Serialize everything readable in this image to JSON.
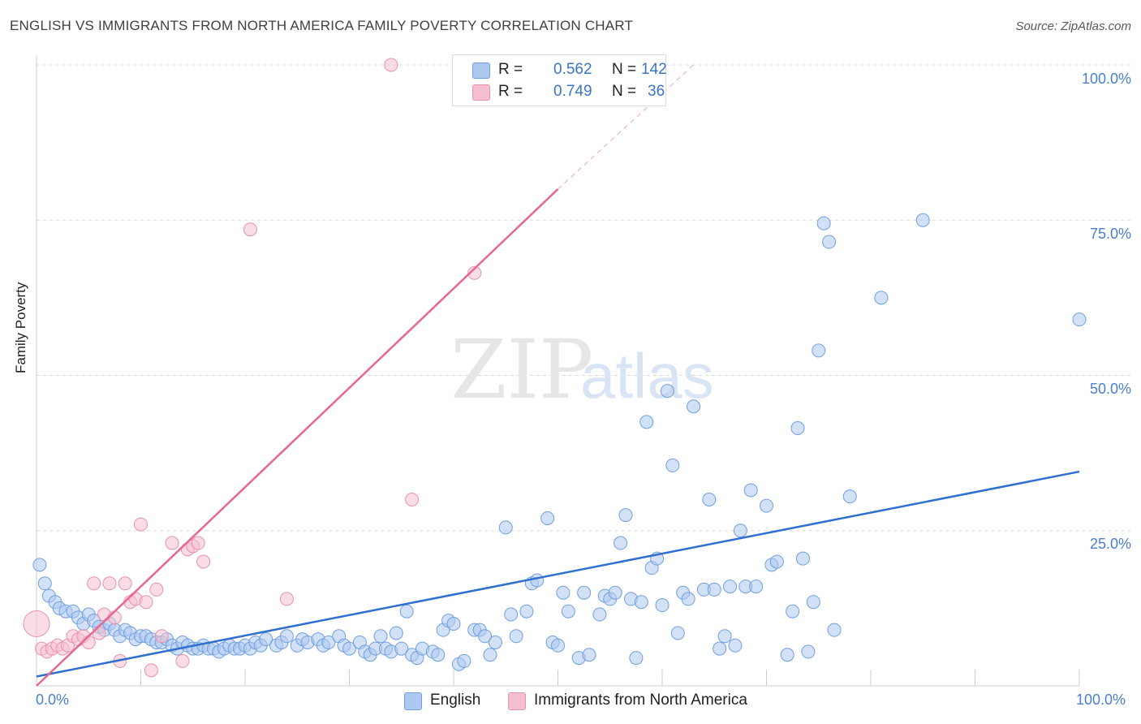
{
  "title": "ENGLISH VS IMMIGRANTS FROM NORTH AMERICA FAMILY POVERTY CORRELATION CHART",
  "source": "Source: ZipAtlas.com",
  "watermark": {
    "zip": "ZIP",
    "atlas": "atlas"
  },
  "colors": {
    "english_fill": "#aec9f0",
    "english_stroke": "#6f9fe0",
    "english_line": "#2f6fcf",
    "immig_fill": "#f6bfd0",
    "immig_stroke": "#e891ad",
    "immig_line": "#e8678f",
    "grid": "#d8d8d8",
    "tick_text": "#4a7fd0"
  },
  "legend": {
    "rows": [
      {
        "r_label": "R =",
        "r_value": "0.562",
        "n_label": "N =",
        "n_value": "142"
      },
      {
        "r_label": "R =",
        "r_value": "0.749",
        "n_label": "N =",
        "n_value": "36"
      }
    ]
  },
  "bottom_legend": [
    "English",
    "Immigrants from North America"
  ],
  "chart_data": {
    "type": "scatter",
    "title": "ENGLISH VS IMMIGRANTS FROM NORTH AMERICA FAMILY POVERTY CORRELATION CHART",
    "xlabel": "",
    "ylabel": "Family Poverty",
    "xlim": [
      0,
      100
    ],
    "ylim": [
      0,
      100
    ],
    "x_tick_labels": [
      "0.0%",
      "100.0%"
    ],
    "y_tick_labels": [
      "100.0%",
      "75.0%",
      "50.0%",
      "25.0%"
    ],
    "y_ticks": [
      100,
      75,
      50,
      25
    ],
    "grid": true,
    "legend_position": "top-center",
    "series": [
      {
        "name": "English",
        "r": 0.562,
        "n": 142,
        "trend": {
          "x": [
            0,
            100
          ],
          "y": [
            1.5,
            34.5
          ]
        },
        "points": [
          [
            0.3,
            19.5
          ],
          [
            0.8,
            16.5
          ],
          [
            1.2,
            14.5
          ],
          [
            1.8,
            13.5
          ],
          [
            2.2,
            12.5
          ],
          [
            2.8,
            12
          ],
          [
            3.5,
            12
          ],
          [
            4,
            11
          ],
          [
            4.5,
            10
          ],
          [
            5,
            11.5
          ],
          [
            5.5,
            10.5
          ],
          [
            6,
            9.5
          ],
          [
            6.5,
            9
          ],
          [
            7,
            10
          ],
          [
            7.5,
            9
          ],
          [
            8,
            8
          ],
          [
            8.5,
            9
          ],
          [
            9,
            8.5
          ],
          [
            9.5,
            7.5
          ],
          [
            10,
            8
          ],
          [
            10.5,
            8
          ],
          [
            11,
            7.5
          ],
          [
            11.5,
            7
          ],
          [
            12,
            7
          ],
          [
            12.5,
            7.5
          ],
          [
            13,
            6.5
          ],
          [
            13.5,
            6
          ],
          [
            14,
            7
          ],
          [
            14.5,
            6.5
          ],
          [
            15,
            6
          ],
          [
            15.5,
            6
          ],
          [
            16,
            6.5
          ],
          [
            16.5,
            6
          ],
          [
            17,
            6
          ],
          [
            17.5,
            5.5
          ],
          [
            18,
            6
          ],
          [
            18.5,
            6.5
          ],
          [
            19,
            6
          ],
          [
            19.5,
            6
          ],
          [
            20,
            6.5
          ],
          [
            20.5,
            6
          ],
          [
            21,
            7
          ],
          [
            21.5,
            6.5
          ],
          [
            22,
            7.5
          ],
          [
            23,
            6.5
          ],
          [
            23.5,
            7
          ],
          [
            24,
            8
          ],
          [
            25,
            6.5
          ],
          [
            25.5,
            7.5
          ],
          [
            26,
            7
          ],
          [
            27,
            7.5
          ],
          [
            27.5,
            6.5
          ],
          [
            28,
            7
          ],
          [
            29,
            8
          ],
          [
            29.5,
            6.5
          ],
          [
            30,
            6
          ],
          [
            31,
            7
          ],
          [
            31.5,
            5.5
          ],
          [
            32,
            5
          ],
          [
            32.5,
            6
          ],
          [
            33,
            8
          ],
          [
            33.5,
            6
          ],
          [
            34,
            5.5
          ],
          [
            34.5,
            8.5
          ],
          [
            35,
            6
          ],
          [
            35.5,
            12
          ],
          [
            36,
            5
          ],
          [
            36.5,
            4.5
          ],
          [
            37,
            6
          ],
          [
            38,
            5.5
          ],
          [
            38.5,
            5
          ],
          [
            39,
            9
          ],
          [
            39.5,
            10.5
          ],
          [
            40,
            10
          ],
          [
            40.5,
            3.5
          ],
          [
            41,
            4
          ],
          [
            42,
            9
          ],
          [
            42.5,
            9
          ],
          [
            43,
            8
          ],
          [
            43.5,
            5
          ],
          [
            44,
            7
          ],
          [
            45,
            25.5
          ],
          [
            45.5,
            11.5
          ],
          [
            46,
            8
          ],
          [
            47,
            12
          ],
          [
            47.5,
            16.5
          ],
          [
            48,
            17
          ],
          [
            49,
            27
          ],
          [
            49.5,
            7
          ],
          [
            50,
            6.5
          ],
          [
            50.5,
            15
          ],
          [
            51,
            12
          ],
          [
            52,
            4.5
          ],
          [
            52.5,
            15
          ],
          [
            53,
            5
          ],
          [
            54,
            11.5
          ],
          [
            54.5,
            14.5
          ],
          [
            55,
            14
          ],
          [
            55.5,
            15
          ],
          [
            56,
            23
          ],
          [
            56.5,
            27.5
          ],
          [
            57,
            14
          ],
          [
            57.5,
            4.5
          ],
          [
            58,
            13.5
          ],
          [
            58.5,
            42.5
          ],
          [
            59,
            19
          ],
          [
            59.5,
            20.5
          ],
          [
            60,
            13
          ],
          [
            60.5,
            47.5
          ],
          [
            61,
            35.5
          ],
          [
            61.5,
            8.5
          ],
          [
            62,
            15
          ],
          [
            62.5,
            14
          ],
          [
            63,
            45
          ],
          [
            64,
            15.5
          ],
          [
            64.5,
            30
          ],
          [
            65,
            15.5
          ],
          [
            65.5,
            6
          ],
          [
            66,
            8
          ],
          [
            66.5,
            16
          ],
          [
            67,
            6.5
          ],
          [
            67.5,
            25
          ],
          [
            68,
            16
          ],
          [
            68.5,
            31.5
          ],
          [
            69,
            16
          ],
          [
            70,
            29
          ],
          [
            70.5,
            19.5
          ],
          [
            71,
            20
          ],
          [
            72,
            5
          ],
          [
            72.5,
            12
          ],
          [
            73,
            41.5
          ],
          [
            73.5,
            20.5
          ],
          [
            74,
            5.5
          ],
          [
            74.5,
            13.5
          ],
          [
            75,
            54
          ],
          [
            75.5,
            74.5
          ],
          [
            76,
            71.5
          ],
          [
            76.5,
            9
          ],
          [
            78,
            30.5
          ],
          [
            81,
            62.5
          ],
          [
            85,
            75
          ],
          [
            100,
            59
          ]
        ]
      },
      {
        "name": "Immigrants from North America",
        "r": 0.749,
        "n": 36,
        "trend": {
          "x": [
            0,
            50
          ],
          "y": [
            0,
            80
          ]
        },
        "trend_dashed": {
          "x": [
            50,
            63
          ],
          "y": [
            80,
            100
          ]
        },
        "points": [
          [
            0,
            10
          ],
          [
            0.5,
            6
          ],
          [
            1,
            5.5
          ],
          [
            1.5,
            6
          ],
          [
            2,
            6.5
          ],
          [
            2.5,
            6
          ],
          [
            3,
            6.5
          ],
          [
            3.5,
            8
          ],
          [
            4,
            7.5
          ],
          [
            4.5,
            8
          ],
          [
            5,
            7
          ],
          [
            5.5,
            16.5
          ],
          [
            6,
            8.5
          ],
          [
            6.5,
            11.5
          ],
          [
            7,
            16.5
          ],
          [
            7.5,
            11
          ],
          [
            8,
            4
          ],
          [
            8.5,
            16.5
          ],
          [
            9,
            13.5
          ],
          [
            9.5,
            14
          ],
          [
            10,
            26
          ],
          [
            10.5,
            13.5
          ],
          [
            11,
            2.5
          ],
          [
            11.5,
            15.5
          ],
          [
            12,
            8
          ],
          [
            13,
            23
          ],
          [
            14,
            4
          ],
          [
            14.5,
            22
          ],
          [
            15,
            22.5
          ],
          [
            15.5,
            23
          ],
          [
            16,
            20
          ],
          [
            20.5,
            73.5
          ],
          [
            24,
            14
          ],
          [
            34,
            100
          ],
          [
            36,
            30
          ],
          [
            42,
            66.5
          ]
        ]
      }
    ]
  }
}
